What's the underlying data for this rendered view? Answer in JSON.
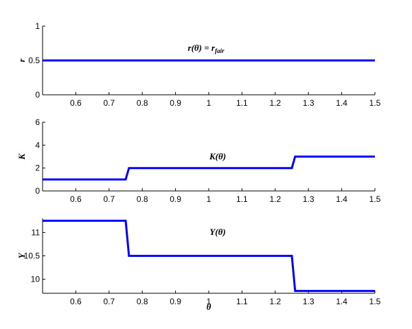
{
  "chart_data": [
    {
      "type": "line",
      "ylabel": "r",
      "annotation": "r(θ) = r_fair",
      "annotation_main": "r(θ) = r",
      "annotation_sub": "fair",
      "xlim": [
        0.5,
        1.5
      ],
      "ylim": [
        0,
        1
      ],
      "xticks": [
        "0.6",
        "0.7",
        "0.8",
        "0.9",
        "1",
        "1.1",
        "1.2",
        "1.3",
        "1.4",
        "1.5"
      ],
      "yticks": [
        "0",
        "0.5",
        "1"
      ],
      "color": "#0000ff",
      "series": [
        {
          "x": [
            0.5,
            1.5
          ],
          "y": [
            0.5,
            0.5
          ]
        }
      ]
    },
    {
      "type": "line",
      "ylabel": "K",
      "annotation": "K(θ)",
      "xlim": [
        0.5,
        1.5
      ],
      "ylim": [
        0,
        6
      ],
      "xticks": [
        "0.6",
        "0.7",
        "0.8",
        "0.9",
        "1",
        "1.1",
        "1.2",
        "1.3",
        "1.4",
        "1.5"
      ],
      "yticks": [
        "0",
        "2",
        "4",
        "6"
      ],
      "color": "#0000ff",
      "series": [
        {
          "x": [
            0.5,
            0.75,
            0.76,
            1.25,
            1.26,
            1.5
          ],
          "y": [
            1,
            1,
            2,
            2,
            3,
            3
          ]
        }
      ]
    },
    {
      "type": "line",
      "ylabel": "Y",
      "xlabel": "θ",
      "annotation": "Y(θ)",
      "xlim": [
        0.5,
        1.5
      ],
      "ylim": [
        9.7,
        11.3
      ],
      "xticks": [
        "0.6",
        "0.7",
        "0.8",
        "0.9",
        "1",
        "1.1",
        "1.2",
        "1.3",
        "1.4",
        "1.5"
      ],
      "yticks": [
        "10",
        "10.5",
        "11"
      ],
      "color": "#0000ff",
      "series": [
        {
          "x": [
            0.5,
            0.75,
            0.76,
            1.25,
            1.26,
            1.5
          ],
          "y": [
            11.25,
            11.25,
            10.5,
            10.5,
            9.75,
            9.75
          ]
        }
      ]
    }
  ]
}
